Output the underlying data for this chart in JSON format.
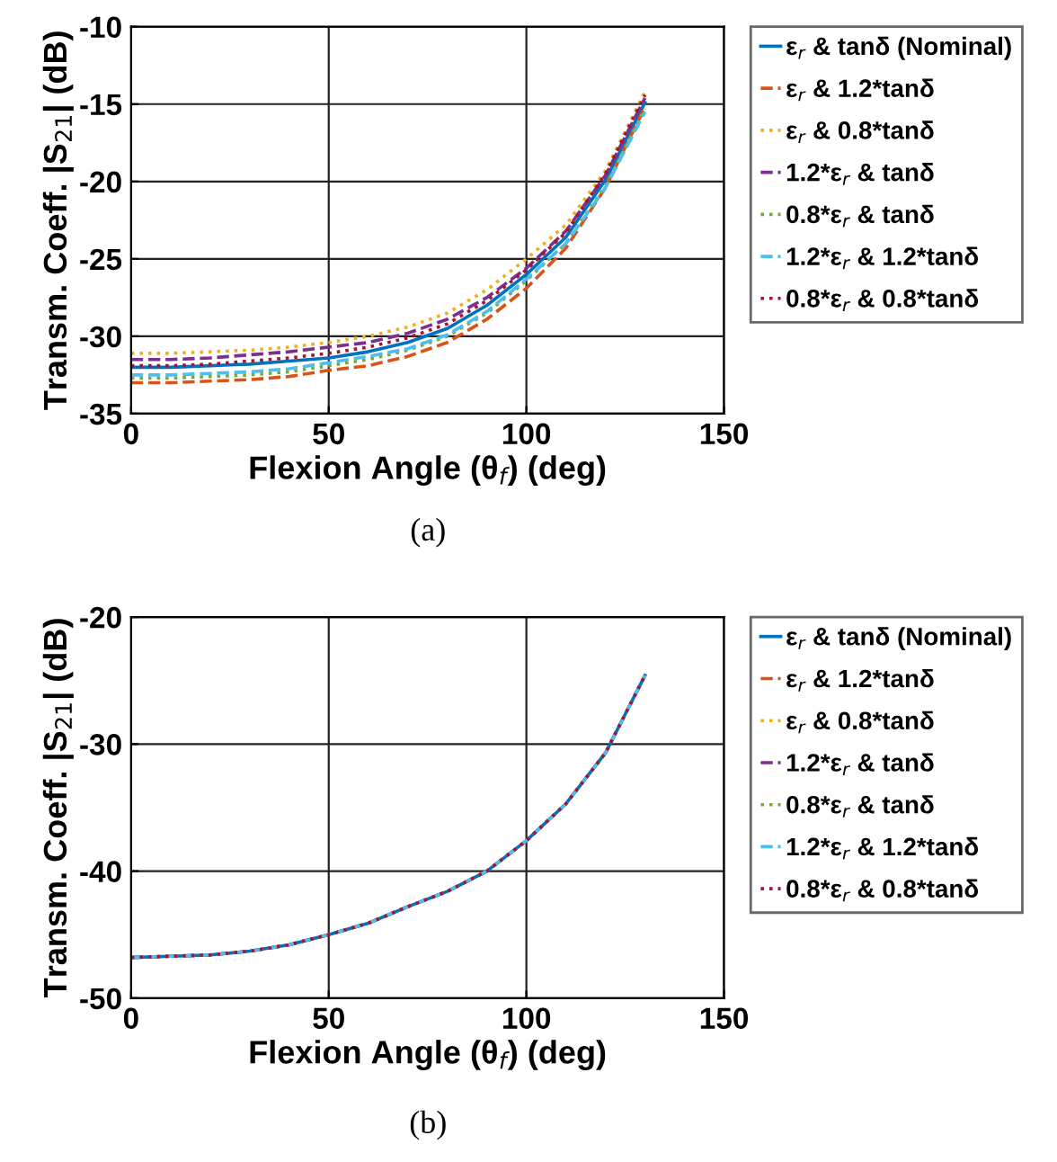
{
  "chart_data": [
    {
      "type": "line",
      "xlabel": "Flexion Angle (θ$_{f}$) (deg)",
      "ylabel": "Transm. Coeff. |S$_{21}$| (dB)",
      "annotations": [
        "(a)"
      ],
      "x": [
        0,
        10,
        20,
        30,
        40,
        50,
        60,
        70,
        80,
        90,
        100,
        110,
        120,
        130
      ],
      "xlim": [
        0,
        150
      ],
      "xticks": [
        0,
        50,
        100,
        150
      ],
      "ylim": [
        -35,
        -10
      ],
      "yticks": [
        -35,
        -30,
        -25,
        -20,
        -15,
        -10
      ],
      "grid": true,
      "legend": "right",
      "marker": "none",
      "series": [
        {
          "name": "ε$_{r}$ & tanδ (Nominal)",
          "color": "#0072bd",
          "line_style": "solid",
          "values": [
            -32.0,
            -32.0,
            -31.9,
            -31.8,
            -31.6,
            -31.4,
            -31.0,
            -30.4,
            -29.5,
            -28.0,
            -26.0,
            -23.6,
            -19.9,
            -14.9
          ]
        },
        {
          "name": "ε$_{r}$ & 1.2*tanδ",
          "color": "#d95319",
          "line_style": "dashed",
          "values": [
            -33.0,
            -33.0,
            -32.9,
            -32.8,
            -32.6,
            -32.2,
            -31.9,
            -31.3,
            -30.4,
            -28.9,
            -26.9,
            -24.3,
            -20.4,
            -15.2
          ]
        },
        {
          "name": "ε$_{r}$ & 0.8*tanδ",
          "color": "#edb120",
          "line_style": "dotted",
          "values": [
            -31.1,
            -31.1,
            -31.0,
            -30.9,
            -30.7,
            -30.4,
            -30.0,
            -29.4,
            -28.5,
            -27.0,
            -25.0,
            -22.8,
            -19.3,
            -14.2
          ]
        },
        {
          "name": "1.2*ε$_{r}$ & tanδ",
          "color": "#7e2f8e",
          "line_style": "dashed",
          "values": [
            -31.5,
            -31.5,
            -31.4,
            -31.2,
            -31.0,
            -30.7,
            -30.4,
            -29.8,
            -28.9,
            -27.5,
            -25.6,
            -23.2,
            -19.6,
            -14.6
          ]
        },
        {
          "name": "0.8*ε$_{r}$ & tanδ",
          "color": "#77ac30",
          "line_style": "dotted",
          "values": [
            -32.7,
            -32.7,
            -32.6,
            -32.5,
            -32.3,
            -31.9,
            -31.5,
            -30.9,
            -30.0,
            -28.5,
            -26.4,
            -24.0,
            -20.3,
            -15.3
          ]
        },
        {
          "name": "1.2*ε$_{r}$ & 1.2*tanδ",
          "color": "#4dbeee",
          "line_style": "dashed",
          "values": [
            -32.5,
            -32.5,
            -32.4,
            -32.3,
            -32.1,
            -31.7,
            -31.3,
            -30.8,
            -29.9,
            -28.4,
            -26.3,
            -24.0,
            -20.4,
            -15.5
          ]
        },
        {
          "name": "0.8*ε$_{r}$ & 0.8*tanδ",
          "color": "#a2142f",
          "line_style": "dotted",
          "values": [
            -31.9,
            -31.9,
            -31.8,
            -31.6,
            -31.4,
            -31.1,
            -30.7,
            -30.1,
            -29.2,
            -27.7,
            -25.7,
            -23.3,
            -19.5,
            -14.4
          ]
        }
      ]
    },
    {
      "type": "line",
      "xlabel": "Flexion Angle (θ$_{f}$) (deg)",
      "ylabel": "Transm. Coeff. |S$_{21}$| (dB)",
      "annotations": [
        "(b)"
      ],
      "x": [
        0,
        10,
        20,
        30,
        40,
        50,
        60,
        70,
        80,
        90,
        100,
        110,
        120,
        130
      ],
      "xlim": [
        0,
        150
      ],
      "xticks": [
        0,
        50,
        100,
        150
      ],
      "ylim": [
        -50,
        -20
      ],
      "yticks": [
        -50,
        -40,
        -30,
        -20
      ],
      "grid": true,
      "legend": "right",
      "marker": "none",
      "series": [
        {
          "name": "ε$_{r}$ & tanδ (Nominal)",
          "color": "#0072bd",
          "line_style": "solid",
          "values": [
            -46.8,
            -46.7,
            -46.6,
            -46.3,
            -45.8,
            -45.0,
            -44.1,
            -42.8,
            -41.6,
            -40.0,
            -37.6,
            -34.7,
            -30.7,
            -24.6
          ]
        },
        {
          "name": "ε$_{r}$ & 1.2*tanδ",
          "color": "#d95319",
          "line_style": "dashed",
          "values": [
            null,
            null,
            null,
            null,
            null,
            null,
            null,
            null,
            null,
            null,
            null,
            null,
            null,
            null
          ]
        },
        {
          "name": "ε$_{r}$ & 0.8*tanδ",
          "color": "#edb120",
          "line_style": "dotted",
          "values": [
            null,
            null,
            null,
            null,
            null,
            null,
            null,
            null,
            null,
            null,
            null,
            null,
            null,
            null
          ]
        },
        {
          "name": "1.2*ε$_{r}$ & tanδ",
          "color": "#7e2f8e",
          "line_style": "dashed",
          "values": [
            -46.8,
            -46.7,
            -46.6,
            -46.3,
            -45.8,
            -45.0,
            -44.1,
            -42.8,
            -41.6,
            -40.0,
            -37.6,
            -34.7,
            -30.7,
            -24.6
          ]
        },
        {
          "name": "0.8*ε$_{r}$ & tanδ",
          "color": "#77ac30",
          "line_style": "dotted",
          "values": [
            null,
            null,
            null,
            null,
            null,
            null,
            null,
            null,
            null,
            null,
            null,
            null,
            null,
            null
          ]
        },
        {
          "name": "1.2*ε$_{r}$ & 1.2*tanδ",
          "color": "#4dbeee",
          "line_style": "dashed",
          "values": [
            -46.8,
            -46.7,
            -46.6,
            -46.3,
            -45.8,
            -45.0,
            -44.1,
            -42.8,
            -41.6,
            -40.0,
            -37.6,
            -34.7,
            -30.7,
            -24.6
          ]
        },
        {
          "name": "0.8*ε$_{r}$ & 0.8*tanδ",
          "color": "#a2142f",
          "line_style": "dotted",
          "values": [
            -46.8,
            -46.7,
            -46.6,
            -46.3,
            -45.8,
            -45.0,
            -44.1,
            -42.8,
            -41.6,
            -40.0,
            -37.6,
            -34.7,
            -30.7,
            -24.6
          ]
        }
      ]
    }
  ]
}
